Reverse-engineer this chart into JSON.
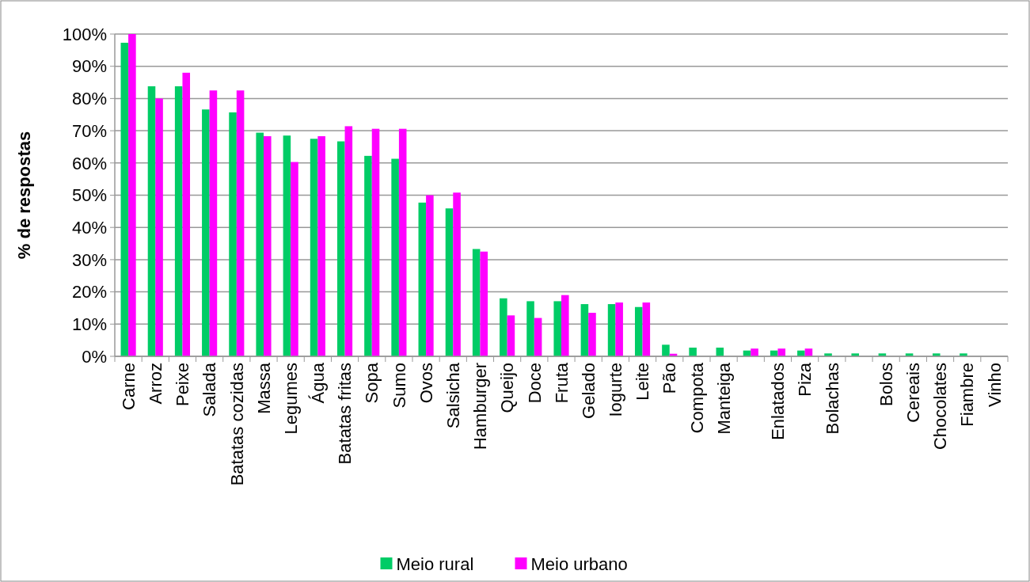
{
  "chart_data": {
    "type": "bar",
    "ylabel": "% de respostas",
    "categories": [
      "Carne",
      "Arroz",
      "Peixe",
      "Salada",
      "Batatas cozidas",
      "Massa",
      "Legumes",
      "Água",
      "Batatas fritas",
      "Sopa",
      "Sumo",
      "Ovos",
      "Salsicha",
      "Hamburger",
      "Queijo",
      "Doce",
      "Fruta",
      "Gelado",
      "Iogurte",
      "Leite",
      "Pão",
      "Compota",
      "Manteiga",
      null,
      "Enlatados",
      "Piza",
      "Bolachas",
      null,
      "Bolos",
      "Cereais",
      "Chocolates",
      "Fiambre",
      "Vinho"
    ],
    "series": [
      {
        "name": "Meio rural",
        "color": "#00cc66",
        "values": [
          97.3,
          83.8,
          83.8,
          76.6,
          75.7,
          69.4,
          68.5,
          67.5,
          66.7,
          62.2,
          61.3,
          47.7,
          45.9,
          33.3,
          18.0,
          17.1,
          17.1,
          16.2,
          16.2,
          15.3,
          3.6,
          2.7,
          2.7,
          1.8,
          1.8,
          1.8,
          0.9,
          0.9,
          0.9,
          0.9,
          0.9,
          0.9,
          0
        ]
      },
      {
        "name": "Meio urbano",
        "color": "#ff00ff",
        "values": [
          100,
          80.0,
          88.0,
          82.5,
          82.5,
          68.3,
          60.3,
          68.3,
          71.4,
          70.6,
          70.6,
          50.0,
          50.8,
          32.5,
          12.7,
          11.9,
          19.0,
          13.5,
          16.7,
          16.7,
          0.8,
          0,
          0,
          2.4,
          2.4,
          2.4,
          0,
          0,
          0,
          0,
          0,
          0,
          0
        ]
      }
    ],
    "ylim": [
      0,
      100
    ],
    "yticks": [
      {
        "value": 0,
        "label": "0%"
      },
      {
        "value": 10,
        "label": "10%"
      },
      {
        "value": 20,
        "label": "20%"
      },
      {
        "value": 30,
        "label": "30%"
      },
      {
        "value": 40,
        "label": "40%"
      },
      {
        "value": 50,
        "label": "50%"
      },
      {
        "value": 60,
        "label": "60%"
      },
      {
        "value": 70,
        "label": "70%"
      },
      {
        "value": 80,
        "label": "80%"
      },
      {
        "value": 90,
        "label": "90%"
      },
      {
        "value": 100,
        "label": "100%"
      }
    ],
    "grid": "y",
    "legend": "bottom"
  }
}
